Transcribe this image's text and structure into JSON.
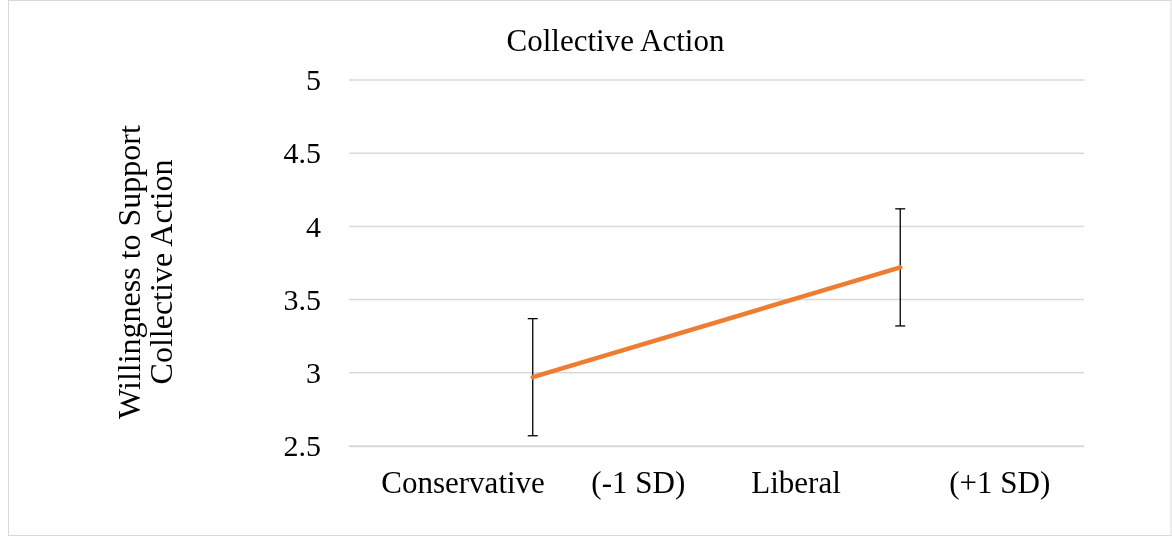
{
  "chart_data": {
    "type": "line",
    "title": "Collective Action",
    "ylabel": "Willingness to Support Collective Action",
    "categories": [
      "Conservative      (-1 SD)",
      "Liberal              (+1 SD)"
    ],
    "series": [
      {
        "color": "#ed7d31",
        "values": [
          2.97,
          3.72
        ],
        "errors": [
          0.4,
          0.4
        ]
      }
    ],
    "ylim": [
      2.5,
      5
    ],
    "yticks": [
      2.5,
      3,
      3.5,
      4,
      4.5,
      5
    ],
    "grid": "y",
    "marker": "none",
    "line_style": "solid"
  }
}
